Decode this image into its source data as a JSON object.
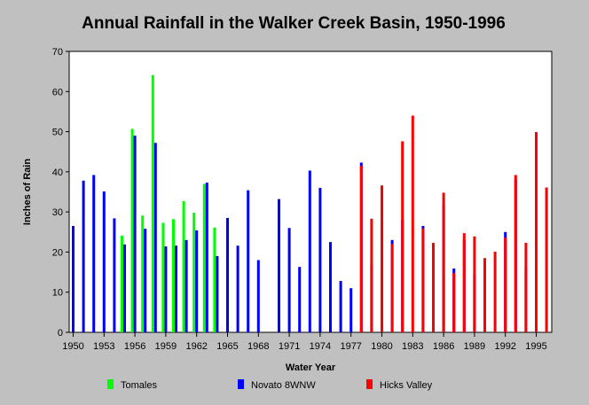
{
  "chart_data": {
    "type": "bar",
    "title": "Annual Rainfall in the Walker Creek Basin, 1950-1996",
    "xlabel": "Water Year",
    "ylabel": "Inches of Rain",
    "xlim": [
      1950,
      1996
    ],
    "ylim": [
      0,
      70
    ],
    "y_ticks": [
      0,
      10,
      20,
      30,
      40,
      50,
      60,
      70
    ],
    "x_ticks": [
      1950,
      1953,
      1956,
      1959,
      1962,
      1965,
      1968,
      1971,
      1974,
      1977,
      1980,
      1983,
      1986,
      1989,
      1992,
      1995
    ],
    "x_tick_labels": [
      "1950",
      "1953",
      "1956",
      "1959",
      "1962",
      "1965",
      "1968",
      "1971",
      "1974",
      "1977",
      "1980",
      "1983",
      "1986",
      "1989",
      "1992",
      "1995"
    ],
    "grid": false,
    "legend_position": "bottom",
    "series": [
      {
        "name": "Tomales",
        "color": "#00ff00",
        "points": [
          [
            1955,
            24.1
          ],
          [
            1956,
            50.7
          ],
          [
            1957,
            29.1
          ],
          [
            1958,
            64.1
          ],
          [
            1959,
            27.3
          ],
          [
            1960,
            28.2
          ],
          [
            1961,
            32.7
          ],
          [
            1962,
            29.8
          ],
          [
            1963,
            37.0
          ],
          [
            1964,
            26.1
          ]
        ]
      },
      {
        "name": "Novato 8WNW",
        "color": "#0000ff",
        "points": [
          [
            1950,
            26.5
          ],
          [
            1951,
            37.8
          ],
          [
            1952,
            39.2
          ],
          [
            1953,
            35.1
          ],
          [
            1954,
            28.4
          ],
          [
            1955,
            21.9
          ],
          [
            1956,
            49.0
          ],
          [
            1957,
            25.8
          ],
          [
            1958,
            47.2
          ],
          [
            1959,
            21.4
          ],
          [
            1960,
            21.6
          ],
          [
            1961,
            23.0
          ],
          [
            1962,
            25.4
          ],
          [
            1963,
            37.3
          ],
          [
            1964,
            19.0
          ],
          [
            1965,
            28.5
          ],
          [
            1966,
            21.6
          ],
          [
            1967,
            35.4
          ],
          [
            1968,
            18.0
          ],
          [
            1970,
            33.2
          ],
          [
            1971,
            26.0
          ],
          [
            1972,
            16.3
          ],
          [
            1973,
            40.3
          ],
          [
            1974,
            36.0
          ],
          [
            1975,
            22.5
          ],
          [
            1976,
            12.8
          ],
          [
            1977,
            11.0
          ],
          [
            1978,
            42.3
          ],
          [
            1979,
            16.8
          ],
          [
            1980,
            17.6
          ],
          [
            1981,
            23.0
          ],
          [
            1982,
            28.1
          ],
          [
            1984,
            26.5
          ],
          [
            1986,
            31.8
          ],
          [
            1987,
            15.9
          ],
          [
            1988,
            23.0
          ],
          [
            1989,
            14.2
          ],
          [
            1992,
            25.0
          ],
          [
            1993,
            38.1
          ],
          [
            1994,
            16.1
          ],
          [
            1995,
            34.6
          ]
        ]
      },
      {
        "name": "Hicks Valley",
        "color": "#ff0000",
        "points": [
          [
            1978,
            41.5
          ],
          [
            1979,
            28.3
          ],
          [
            1980,
            36.6
          ],
          [
            1981,
            22.0
          ],
          [
            1982,
            47.6
          ],
          [
            1983,
            54.0
          ],
          [
            1984,
            25.9
          ],
          [
            1985,
            22.3
          ],
          [
            1986,
            34.8
          ],
          [
            1987,
            14.8
          ],
          [
            1988,
            24.7
          ],
          [
            1989,
            23.9
          ],
          [
            1990,
            18.5
          ],
          [
            1991,
            20.1
          ],
          [
            1992,
            23.6
          ],
          [
            1993,
            39.2
          ],
          [
            1994,
            22.3
          ],
          [
            1995,
            49.9
          ],
          [
            1996,
            36.1
          ]
        ]
      }
    ]
  }
}
